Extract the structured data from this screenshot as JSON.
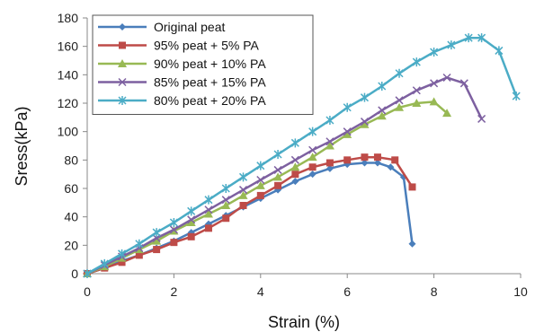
{
  "chart_data": {
    "type": "line",
    "xlabel": "Strain (%)",
    "ylabel": "Sress(kPa)",
    "xlim": [
      0,
      10
    ],
    "ylim": [
      0,
      180
    ],
    "xticks": [
      0,
      2,
      4,
      6,
      8,
      10
    ],
    "yticks": [
      0,
      20,
      40,
      60,
      80,
      100,
      120,
      140,
      160,
      180
    ],
    "xtick_labels": [
      "0",
      "2",
      "4",
      "6",
      "8",
      "10"
    ],
    "ytick_labels": [
      "0",
      "20",
      "40",
      "60",
      "80",
      "100",
      "120",
      "140",
      "160",
      "180"
    ],
    "grid": false,
    "legend_position": "top-left",
    "series": [
      {
        "name": "Original peat",
        "color": "#4a7ebb",
        "marker": "diamond",
        "x": [
          0,
          0.4,
          0.8,
          1.2,
          1.6,
          2.0,
          2.4,
          2.8,
          3.2,
          3.6,
          4.0,
          4.4,
          4.8,
          5.2,
          5.6,
          6.0,
          6.4,
          6.7,
          7.0,
          7.3,
          7.5
        ],
        "y": [
          0,
          4,
          9,
          13,
          18,
          23,
          29,
          35,
          41,
          47,
          53,
          59,
          65,
          70,
          74,
          77,
          78,
          78,
          75,
          68,
          21
        ]
      },
      {
        "name": "95% peat + 5% PA",
        "color": "#be4b48",
        "marker": "square",
        "x": [
          0,
          0.4,
          0.8,
          1.2,
          1.6,
          2.0,
          2.4,
          2.8,
          3.2,
          3.6,
          4.0,
          4.4,
          4.8,
          5.2,
          5.6,
          6.0,
          6.4,
          6.7,
          7.1,
          7.5
        ],
        "y": [
          0,
          4,
          8,
          13,
          17,
          22,
          26,
          32,
          39,
          48,
          55,
          62,
          70,
          75,
          78,
          80,
          82,
          82,
          80,
          61
        ]
      },
      {
        "name": "90% peat + 10% PA",
        "color": "#98b954",
        "marker": "triangle",
        "x": [
          0,
          0.4,
          0.8,
          1.2,
          1.6,
          2.0,
          2.4,
          2.8,
          3.2,
          3.6,
          4.0,
          4.4,
          4.8,
          5.2,
          5.6,
          6.0,
          6.4,
          6.8,
          7.2,
          7.6,
          8.0,
          8.3
        ],
        "y": [
          0,
          5,
          11,
          17,
          23,
          30,
          36,
          42,
          48,
          55,
          62,
          68,
          75,
          82,
          90,
          98,
          105,
          111,
          117,
          120,
          121,
          113
        ]
      },
      {
        "name": "85% peat + 15% PA",
        "color": "#7d60a0",
        "marker": "x",
        "x": [
          0,
          0.4,
          0.8,
          1.2,
          1.6,
          2.0,
          2.4,
          2.8,
          3.2,
          3.6,
          4.0,
          4.4,
          4.8,
          5.2,
          5.6,
          6.0,
          6.4,
          6.8,
          7.2,
          7.6,
          8.0,
          8.3,
          8.7,
          9.1
        ],
        "y": [
          0,
          6,
          12,
          18,
          25,
          31,
          38,
          45,
          52,
          59,
          66,
          73,
          80,
          87,
          93,
          100,
          107,
          115,
          122,
          129,
          134,
          138,
          134,
          109
        ]
      },
      {
        "name": "80% peat + 20% PA",
        "color": "#4bacc6",
        "marker": "star",
        "x": [
          0,
          0.4,
          0.8,
          1.2,
          1.6,
          2.0,
          2.4,
          2.8,
          3.2,
          3.6,
          4.0,
          4.4,
          4.8,
          5.2,
          5.6,
          6.0,
          6.4,
          6.8,
          7.2,
          7.6,
          8.0,
          8.4,
          8.8,
          9.1,
          9.5,
          9.9
        ],
        "y": [
          0,
          7,
          14,
          21,
          29,
          36,
          44,
          52,
          60,
          68,
          76,
          84,
          92,
          100,
          108,
          117,
          124,
          132,
          141,
          149,
          156,
          161,
          166,
          166,
          157,
          125
        ]
      }
    ]
  }
}
